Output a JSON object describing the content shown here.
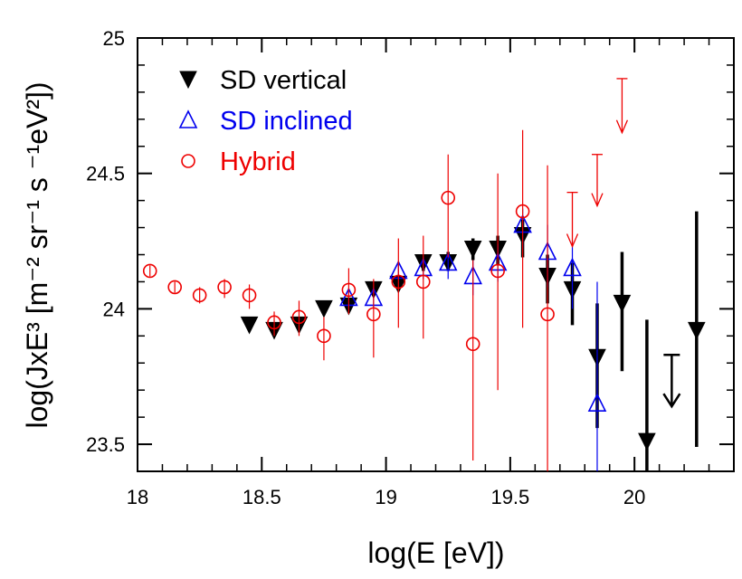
{
  "chart_data": {
    "type": "scatter",
    "title": "",
    "xlabel": "log(E [eV])",
    "ylabel": "log(JxE³ [m⁻² sr⁻¹ s ⁻¹eV²])",
    "xlim": [
      18.0,
      20.4
    ],
    "ylim": [
      23.4,
      25.0
    ],
    "x_ticks": [
      18,
      18.5,
      19,
      19.5,
      20
    ],
    "x_tick_labels": [
      "18",
      "18.5",
      "19",
      "19.5",
      "20"
    ],
    "y_ticks": [
      23.5,
      24,
      24.5,
      25
    ],
    "y_tick_labels": [
      "23.5",
      "24",
      "24.5",
      "25"
    ],
    "grid": false,
    "legend_position": "top-left",
    "series": [
      {
        "name": "SD vertical",
        "marker": "filled-down-triangle",
        "color": "#000000",
        "points": [
          {
            "x": 18.45,
            "y": 23.94
          },
          {
            "x": 18.55,
            "y": 23.92
          },
          {
            "x": 18.65,
            "y": 23.94
          },
          {
            "x": 18.75,
            "y": 24.0
          },
          {
            "x": 18.85,
            "y": 24.01,
            "ylo": 24.0,
            "yhi": 24.02
          },
          {
            "x": 18.95,
            "y": 24.07,
            "ylo": 24.05,
            "yhi": 24.09
          },
          {
            "x": 19.05,
            "y": 24.09,
            "ylo": 24.07,
            "yhi": 24.11
          },
          {
            "x": 19.15,
            "y": 24.17,
            "ylo": 24.14,
            "yhi": 24.2
          },
          {
            "x": 19.25,
            "y": 24.17,
            "ylo": 24.14,
            "yhi": 24.21
          },
          {
            "x": 19.35,
            "y": 24.22,
            "ylo": 24.18,
            "yhi": 24.26
          },
          {
            "x": 19.45,
            "y": 24.22,
            "ylo": 24.16,
            "yhi": 24.27
          },
          {
            "x": 19.55,
            "y": 24.27,
            "ylo": 24.19,
            "yhi": 24.33
          },
          {
            "x": 19.65,
            "y": 24.12,
            "ylo": 24.02,
            "yhi": 24.2
          },
          {
            "x": 19.75,
            "y": 24.07,
            "ylo": 23.94,
            "yhi": 24.17
          },
          {
            "x": 19.85,
            "y": 23.82,
            "ylo": 23.56,
            "yhi": 24.02
          },
          {
            "x": 19.95,
            "y": 24.02,
            "ylo": 23.77,
            "yhi": 24.21
          },
          {
            "x": 20.05,
            "y": 23.51,
            "ylo": 23.4,
            "yhi": 23.96
          },
          {
            "x": 20.25,
            "y": 23.92,
            "ylo": 23.49,
            "yhi": 24.36
          }
        ],
        "upper_limits": [
          {
            "x": 20.15,
            "y": 23.83,
            "bottom": 23.64
          }
        ]
      },
      {
        "name": "SD inclined",
        "marker": "open-up-triangle",
        "color": "#0000ee",
        "points": [
          {
            "x": 18.85,
            "y": 24.04,
            "ylo": 24.0,
            "yhi": 24.07
          },
          {
            "x": 18.95,
            "y": 24.04,
            "ylo": 24.0,
            "yhi": 24.08
          },
          {
            "x": 19.05,
            "y": 24.14,
            "ylo": 24.11,
            "yhi": 24.17
          },
          {
            "x": 19.15,
            "y": 24.15,
            "ylo": 24.11,
            "yhi": 24.19
          },
          {
            "x": 19.25,
            "y": 24.17,
            "ylo": 24.11,
            "yhi": 24.21
          },
          {
            "x": 19.35,
            "y": 24.12,
            "ylo": 24.05,
            "yhi": 24.18
          },
          {
            "x": 19.45,
            "y": 24.17,
            "ylo": 24.1,
            "yhi": 24.24
          },
          {
            "x": 19.55,
            "y": 24.31,
            "ylo": 24.22,
            "yhi": 24.37
          },
          {
            "x": 19.65,
            "y": 24.21,
            "ylo": 24.08,
            "yhi": 24.31
          },
          {
            "x": 19.75,
            "y": 24.15,
            "ylo": 24.0,
            "yhi": 24.25
          },
          {
            "x": 19.85,
            "y": 23.65,
            "ylo": 23.4,
            "yhi": 24.1
          }
        ]
      },
      {
        "name": "Hybrid",
        "marker": "open-circle",
        "color": "#ee0000",
        "points": [
          {
            "x": 18.05,
            "y": 24.14,
            "ylo": 24.12,
            "yhi": 24.16
          },
          {
            "x": 18.15,
            "y": 24.08,
            "ylo": 24.06,
            "yhi": 24.1
          },
          {
            "x": 18.25,
            "y": 24.05,
            "ylo": 24.02,
            "yhi": 24.08
          },
          {
            "x": 18.35,
            "y": 24.08,
            "ylo": 24.04,
            "yhi": 24.11
          },
          {
            "x": 18.45,
            "y": 24.05,
            "ylo": 24.0,
            "yhi": 24.09
          },
          {
            "x": 18.55,
            "y": 23.95,
            "ylo": 23.9,
            "yhi": 23.99
          },
          {
            "x": 18.65,
            "y": 23.97,
            "ylo": 23.9,
            "yhi": 24.03
          },
          {
            "x": 18.75,
            "y": 23.9,
            "ylo": 23.81,
            "yhi": 23.97
          },
          {
            "x": 18.85,
            "y": 24.07,
            "ylo": 23.98,
            "yhi": 24.15
          },
          {
            "x": 18.95,
            "y": 23.98,
            "ylo": 23.82,
            "yhi": 24.11
          },
          {
            "x": 19.05,
            "y": 24.1,
            "ylo": 23.93,
            "yhi": 24.26
          },
          {
            "x": 19.15,
            "y": 24.1,
            "ylo": 23.89,
            "yhi": 24.27
          },
          {
            "x": 19.25,
            "y": 24.41,
            "ylo": 24.19,
            "yhi": 24.57
          },
          {
            "x": 19.35,
            "y": 23.87,
            "ylo": 23.44,
            "yhi": 24.18
          },
          {
            "x": 19.45,
            "y": 24.14,
            "ylo": 23.7,
            "yhi": 24.5
          },
          {
            "x": 19.55,
            "y": 24.36,
            "ylo": 23.93,
            "yhi": 24.66
          },
          {
            "x": 19.65,
            "y": 23.98,
            "ylo": 23.4,
            "yhi": 24.53
          }
        ],
        "upper_limits": [
          {
            "x": 19.75,
            "y": 24.43,
            "bottom": 24.23
          },
          {
            "x": 19.85,
            "y": 24.57,
            "bottom": 24.38
          },
          {
            "x": 19.95,
            "y": 24.85,
            "bottom": 24.65
          }
        ]
      }
    ]
  }
}
